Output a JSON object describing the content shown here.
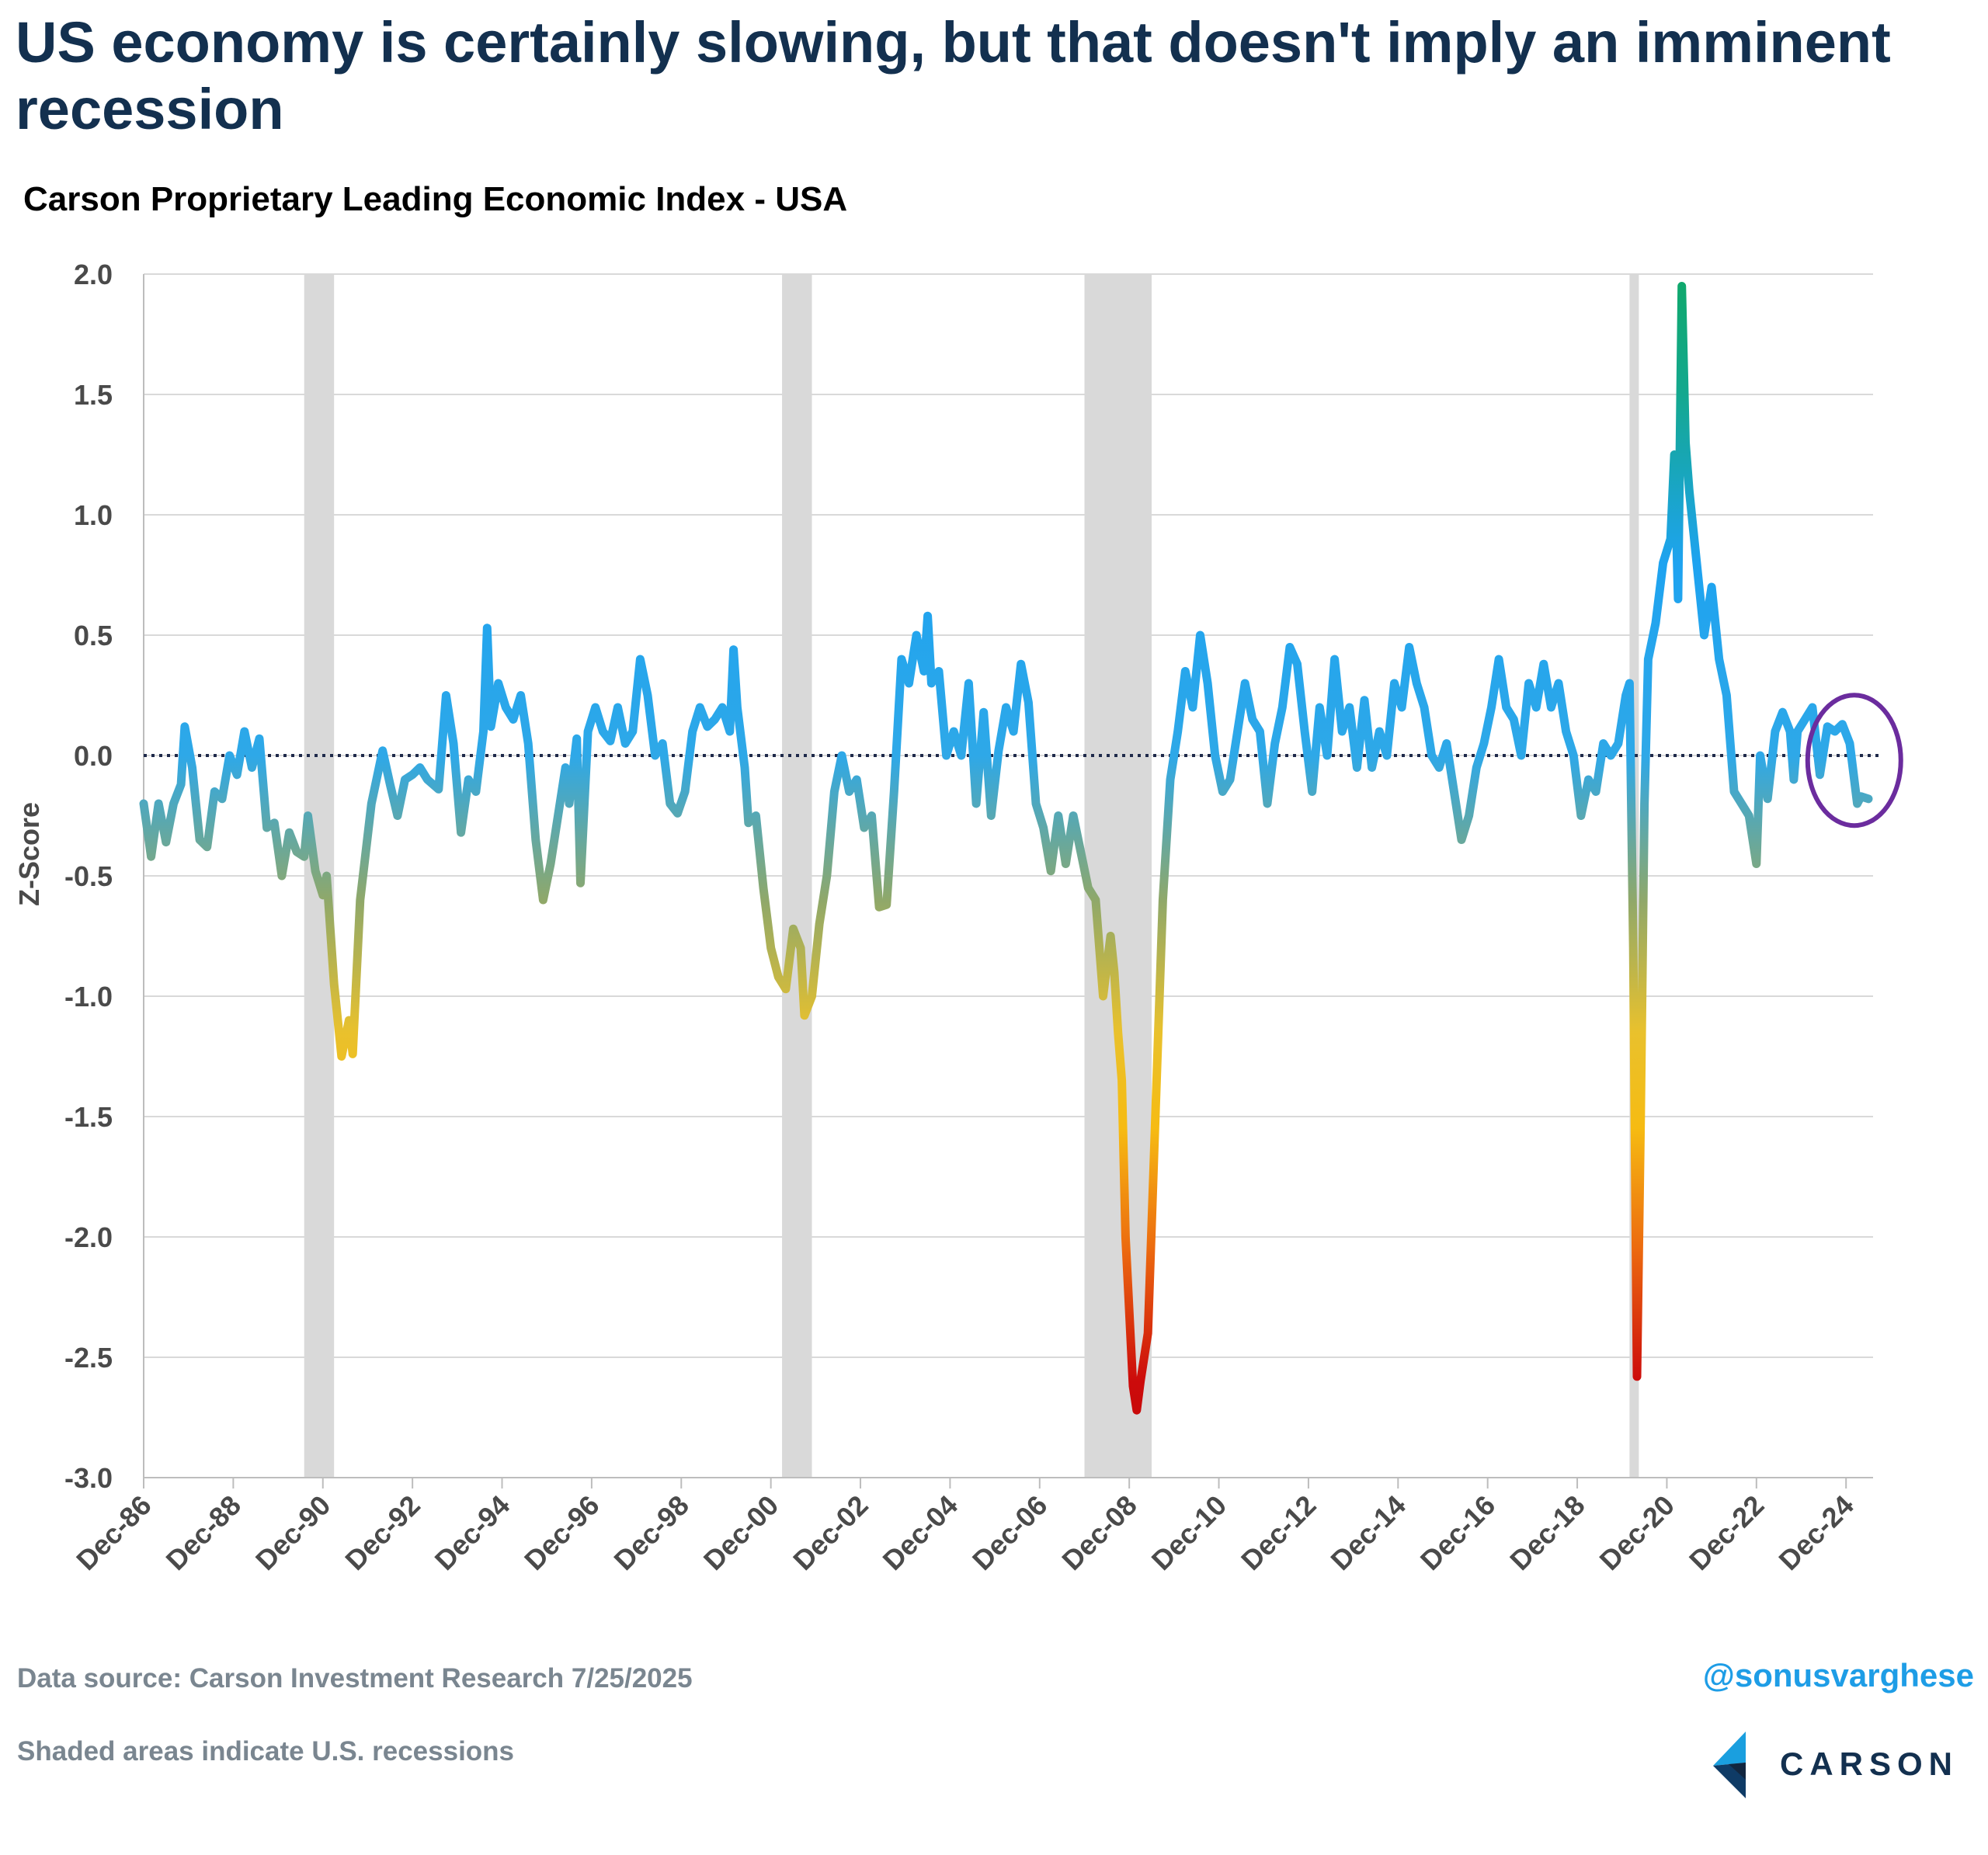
{
  "title": "US economy is certainly slowing, but that doesn't imply an imminent recession",
  "subtitle": "Carson Proprietary Leading Economic Index - USA",
  "source_note": "Data source: Carson Investment Research  7/25/2025",
  "shading_note": "Shaded areas indicate U.S. recessions",
  "handle": "@sonusvarghese",
  "logo_text": "CARSON",
  "chart_data": {
    "type": "line",
    "title": "Carson Proprietary Leading Economic Index - USA",
    "xlabel": "",
    "ylabel": "Z-Score",
    "ylim": [
      -3.0,
      2.0
    ],
    "yticks": [
      "2.0",
      "1.5",
      "1.0",
      "0.5",
      "0.0",
      "-0.5",
      "-1.0",
      "-1.5",
      "-2.0",
      "-2.5",
      "-3.0"
    ],
    "xticks": [
      "Dec-86",
      "Dec-88",
      "Dec-90",
      "Dec-92",
      "Dec-94",
      "Dec-96",
      "Dec-98",
      "Dec-00",
      "Dec-02",
      "Dec-04",
      "Dec-06",
      "Dec-08",
      "Dec-10",
      "Dec-12",
      "Dec-14",
      "Dec-16",
      "Dec-18",
      "Dec-20",
      "Dec-22",
      "Dec-24"
    ],
    "grid": "horizontal",
    "reference_line": 0,
    "recessions": [
      {
        "start": "1990-07",
        "end": "1991-03"
      },
      {
        "start": "2001-03",
        "end": "2001-11"
      },
      {
        "start": "2007-12",
        "end": "2009-06"
      },
      {
        "start": "2020-02",
        "end": "2020-04"
      }
    ],
    "highlight": {
      "shape": "circle",
      "around": "2024-2025"
    },
    "color_scale": {
      "high": "#0fa86a",
      "mid": "#1ea3f0",
      "low_mid": "#f2c21b",
      "low": "#cc0b0b"
    },
    "series": [
      {
        "points": [
          [
            "1986-12",
            -0.2
          ],
          [
            "1987-02",
            -0.42
          ],
          [
            "1987-04",
            -0.2
          ],
          [
            "1987-06",
            -0.36
          ],
          [
            "1987-08",
            -0.2
          ],
          [
            "1987-10",
            -0.12
          ],
          [
            "1987-11",
            0.12
          ],
          [
            "1988-01",
            -0.05
          ],
          [
            "1988-03",
            -0.35
          ],
          [
            "1988-05",
            -0.38
          ],
          [
            "1988-07",
            -0.15
          ],
          [
            "1988-09",
            -0.18
          ],
          [
            "1988-11",
            0.0
          ],
          [
            "1989-01",
            -0.08
          ],
          [
            "1989-03",
            0.1
          ],
          [
            "1989-05",
            -0.05
          ],
          [
            "1989-07",
            0.07
          ],
          [
            "1989-09",
            -0.3
          ],
          [
            "1989-11",
            -0.28
          ],
          [
            "1990-01",
            -0.5
          ],
          [
            "1990-03",
            -0.32
          ],
          [
            "1990-05",
            -0.4
          ],
          [
            "1990-07",
            -0.42
          ],
          [
            "1990-08",
            -0.25
          ],
          [
            "1990-10",
            -0.48
          ],
          [
            "1990-12",
            -0.58
          ],
          [
            "1991-01",
            -0.5
          ],
          [
            "1991-03",
            -0.95
          ],
          [
            "1991-05",
            -1.25
          ],
          [
            "1991-07",
            -1.1
          ],
          [
            "1991-08",
            -1.24
          ],
          [
            "1991-10",
            -0.6
          ],
          [
            "1992-01",
            -0.2
          ],
          [
            "1992-04",
            0.02
          ],
          [
            "1992-06",
            -0.12
          ],
          [
            "1992-08",
            -0.25
          ],
          [
            "1992-10",
            -0.1
          ],
          [
            "1992-12",
            -0.08
          ],
          [
            "1993-02",
            -0.05
          ],
          [
            "1993-04",
            -0.1
          ],
          [
            "1993-07",
            -0.14
          ],
          [
            "1993-09",
            0.25
          ],
          [
            "1993-11",
            0.05
          ],
          [
            "1994-01",
            -0.32
          ],
          [
            "1994-03",
            -0.1
          ],
          [
            "1994-05",
            -0.15
          ],
          [
            "1994-07",
            0.1
          ],
          [
            "1994-08",
            0.53
          ],
          [
            "1994-09",
            0.12
          ],
          [
            "1994-11",
            0.3
          ],
          [
            "1995-01",
            0.2
          ],
          [
            "1995-03",
            0.15
          ],
          [
            "1995-05",
            0.25
          ],
          [
            "1995-07",
            0.05
          ],
          [
            "1995-09",
            -0.35
          ],
          [
            "1995-11",
            -0.6
          ],
          [
            "1996-01",
            -0.45
          ],
          [
            "1996-03",
            -0.25
          ],
          [
            "1996-05",
            -0.05
          ],
          [
            "1996-06",
            -0.2
          ],
          [
            "1996-08",
            0.07
          ],
          [
            "1996-09",
            -0.53
          ],
          [
            "1996-11",
            0.1
          ],
          [
            "1997-01",
            0.2
          ],
          [
            "1997-03",
            0.1
          ],
          [
            "1997-05",
            0.06
          ],
          [
            "1997-07",
            0.2
          ],
          [
            "1997-09",
            0.05
          ],
          [
            "1997-11",
            0.1
          ],
          [
            "1998-01",
            0.4
          ],
          [
            "1998-03",
            0.25
          ],
          [
            "1998-05",
            0.0
          ],
          [
            "1998-07",
            0.05
          ],
          [
            "1998-09",
            -0.2
          ],
          [
            "1998-11",
            -0.24
          ],
          [
            "1999-01",
            -0.15
          ],
          [
            "1999-03",
            0.1
          ],
          [
            "1999-05",
            0.2
          ],
          [
            "1999-07",
            0.12
          ],
          [
            "1999-09",
            0.15
          ],
          [
            "1999-11",
            0.2
          ],
          [
            "2000-01",
            0.1
          ],
          [
            "2000-02",
            0.44
          ],
          [
            "2000-03",
            0.2
          ],
          [
            "2000-05",
            -0.05
          ],
          [
            "2000-06",
            -0.28
          ],
          [
            "2000-08",
            -0.25
          ],
          [
            "2000-10",
            -0.55
          ],
          [
            "2000-12",
            -0.8
          ],
          [
            "2001-02",
            -0.92
          ],
          [
            "2001-04",
            -0.97
          ],
          [
            "2001-06",
            -0.72
          ],
          [
            "2001-08",
            -0.8
          ],
          [
            "2001-09",
            -1.08
          ],
          [
            "2001-11",
            -1.0
          ],
          [
            "2002-01",
            -0.7
          ],
          [
            "2002-03",
            -0.5
          ],
          [
            "2002-05",
            -0.15
          ],
          [
            "2002-07",
            0.0
          ],
          [
            "2002-09",
            -0.15
          ],
          [
            "2002-11",
            -0.1
          ],
          [
            "2003-01",
            -0.3
          ],
          [
            "2003-03",
            -0.25
          ],
          [
            "2003-05",
            -0.63
          ],
          [
            "2003-07",
            -0.62
          ],
          [
            "2003-09",
            -0.15
          ],
          [
            "2003-11",
            0.4
          ],
          [
            "2004-01",
            0.3
          ],
          [
            "2004-03",
            0.5
          ],
          [
            "2004-05",
            0.35
          ],
          [
            "2004-06",
            0.58
          ],
          [
            "2004-07",
            0.3
          ],
          [
            "2004-09",
            0.35
          ],
          [
            "2004-11",
            0.0
          ],
          [
            "2005-01",
            0.1
          ],
          [
            "2005-03",
            0.0
          ],
          [
            "2005-05",
            0.3
          ],
          [
            "2005-07",
            -0.2
          ],
          [
            "2005-09",
            0.18
          ],
          [
            "2005-11",
            -0.25
          ],
          [
            "2006-01",
            0.02
          ],
          [
            "2006-03",
            0.2
          ],
          [
            "2006-05",
            0.1
          ],
          [
            "2006-07",
            0.38
          ],
          [
            "2006-09",
            0.22
          ],
          [
            "2006-11",
            -0.2
          ],
          [
            "2007-01",
            -0.3
          ],
          [
            "2007-03",
            -0.48
          ],
          [
            "2007-05",
            -0.25
          ],
          [
            "2007-07",
            -0.45
          ],
          [
            "2007-09",
            -0.25
          ],
          [
            "2007-11",
            -0.4
          ],
          [
            "2008-01",
            -0.55
          ],
          [
            "2008-03",
            -0.6
          ],
          [
            "2008-05",
            -1.0
          ],
          [
            "2008-07",
            -0.75
          ],
          [
            "2008-08",
            -0.9
          ],
          [
            "2008-09",
            -1.15
          ],
          [
            "2008-10",
            -1.35
          ],
          [
            "2008-11",
            -2.0
          ],
          [
            "2009-01",
            -2.62
          ],
          [
            "2009-02",
            -2.72
          ],
          [
            "2009-03",
            -2.6
          ],
          [
            "2009-05",
            -2.4
          ],
          [
            "2009-07",
            -1.5
          ],
          [
            "2009-09",
            -0.6
          ],
          [
            "2009-11",
            -0.1
          ],
          [
            "2010-01",
            0.1
          ],
          [
            "2010-03",
            0.35
          ],
          [
            "2010-05",
            0.2
          ],
          [
            "2010-07",
            0.5
          ],
          [
            "2010-09",
            0.3
          ],
          [
            "2010-11",
            0.0
          ],
          [
            "2011-01",
            -0.15
          ],
          [
            "2011-03",
            -0.1
          ],
          [
            "2011-05",
            0.1
          ],
          [
            "2011-07",
            0.3
          ],
          [
            "2011-09",
            0.15
          ],
          [
            "2011-11",
            0.1
          ],
          [
            "2012-01",
            -0.2
          ],
          [
            "2012-03",
            0.05
          ],
          [
            "2012-05",
            0.2
          ],
          [
            "2012-07",
            0.45
          ],
          [
            "2012-09",
            0.38
          ],
          [
            "2012-11",
            0.1
          ],
          [
            "2013-01",
            -0.15
          ],
          [
            "2013-03",
            0.2
          ],
          [
            "2013-05",
            0.0
          ],
          [
            "2013-07",
            0.4
          ],
          [
            "2013-09",
            0.1
          ],
          [
            "2013-11",
            0.2
          ],
          [
            "2014-01",
            -0.05
          ],
          [
            "2014-03",
            0.23
          ],
          [
            "2014-05",
            -0.05
          ],
          [
            "2014-07",
            0.1
          ],
          [
            "2014-09",
            0.0
          ],
          [
            "2014-11",
            0.3
          ],
          [
            "2015-01",
            0.2
          ],
          [
            "2015-03",
            0.45
          ],
          [
            "2015-05",
            0.3
          ],
          [
            "2015-07",
            0.2
          ],
          [
            "2015-09",
            0.0
          ],
          [
            "2015-11",
            -0.05
          ],
          [
            "2016-01",
            0.05
          ],
          [
            "2016-03",
            -0.15
          ],
          [
            "2016-05",
            -0.35
          ],
          [
            "2016-07",
            -0.25
          ],
          [
            "2016-09",
            -0.05
          ],
          [
            "2016-11",
            0.05
          ],
          [
            "2017-01",
            0.2
          ],
          [
            "2017-03",
            0.4
          ],
          [
            "2017-05",
            0.2
          ],
          [
            "2017-07",
            0.15
          ],
          [
            "2017-09",
            0.0
          ],
          [
            "2017-11",
            0.3
          ],
          [
            "2018-01",
            0.2
          ],
          [
            "2018-03",
            0.38
          ],
          [
            "2018-05",
            0.2
          ],
          [
            "2018-07",
            0.3
          ],
          [
            "2018-09",
            0.1
          ],
          [
            "2018-11",
            0.0
          ],
          [
            "2019-01",
            -0.25
          ],
          [
            "2019-03",
            -0.1
          ],
          [
            "2019-05",
            -0.15
          ],
          [
            "2019-07",
            0.05
          ],
          [
            "2019-09",
            0.0
          ],
          [
            "2019-11",
            0.05
          ],
          [
            "2020-01",
            0.25
          ],
          [
            "2020-02",
            0.3
          ],
          [
            "2020-03",
            -0.8
          ],
          [
            "2020-04",
            -2.58
          ],
          [
            "2020-05",
            -1.5
          ],
          [
            "2020-06",
            -0.2
          ],
          [
            "2020-07",
            0.4
          ],
          [
            "2020-09",
            0.55
          ],
          [
            "2020-11",
            0.8
          ],
          [
            "2021-01",
            0.9
          ],
          [
            "2021-02",
            1.25
          ],
          [
            "2021-03",
            0.65
          ],
          [
            "2021-04",
            1.95
          ],
          [
            "2021-05",
            1.3
          ],
          [
            "2021-06",
            1.1
          ],
          [
            "2021-08",
            0.8
          ],
          [
            "2021-10",
            0.5
          ],
          [
            "2021-12",
            0.7
          ],
          [
            "2022-02",
            0.4
          ],
          [
            "2022-04",
            0.25
          ],
          [
            "2022-06",
            -0.15
          ],
          [
            "2022-08",
            -0.2
          ],
          [
            "2022-10",
            -0.25
          ],
          [
            "2022-12",
            -0.45
          ],
          [
            "2023-01",
            0.0
          ],
          [
            "2023-03",
            -0.18
          ],
          [
            "2023-05",
            0.1
          ],
          [
            "2023-07",
            0.18
          ],
          [
            "2023-09",
            0.1
          ],
          [
            "2023-10",
            -0.1
          ],
          [
            "2023-11",
            0.1
          ],
          [
            "2024-01",
            0.15
          ],
          [
            "2024-03",
            0.2
          ],
          [
            "2024-05",
            -0.08
          ],
          [
            "2024-07",
            0.12
          ],
          [
            "2024-09",
            0.1
          ],
          [
            "2024-11",
            0.13
          ],
          [
            "2025-01",
            0.05
          ],
          [
            "2025-03",
            -0.2
          ],
          [
            "2025-04",
            -0.17
          ],
          [
            "2025-06",
            -0.18
          ]
        ]
      }
    ]
  }
}
